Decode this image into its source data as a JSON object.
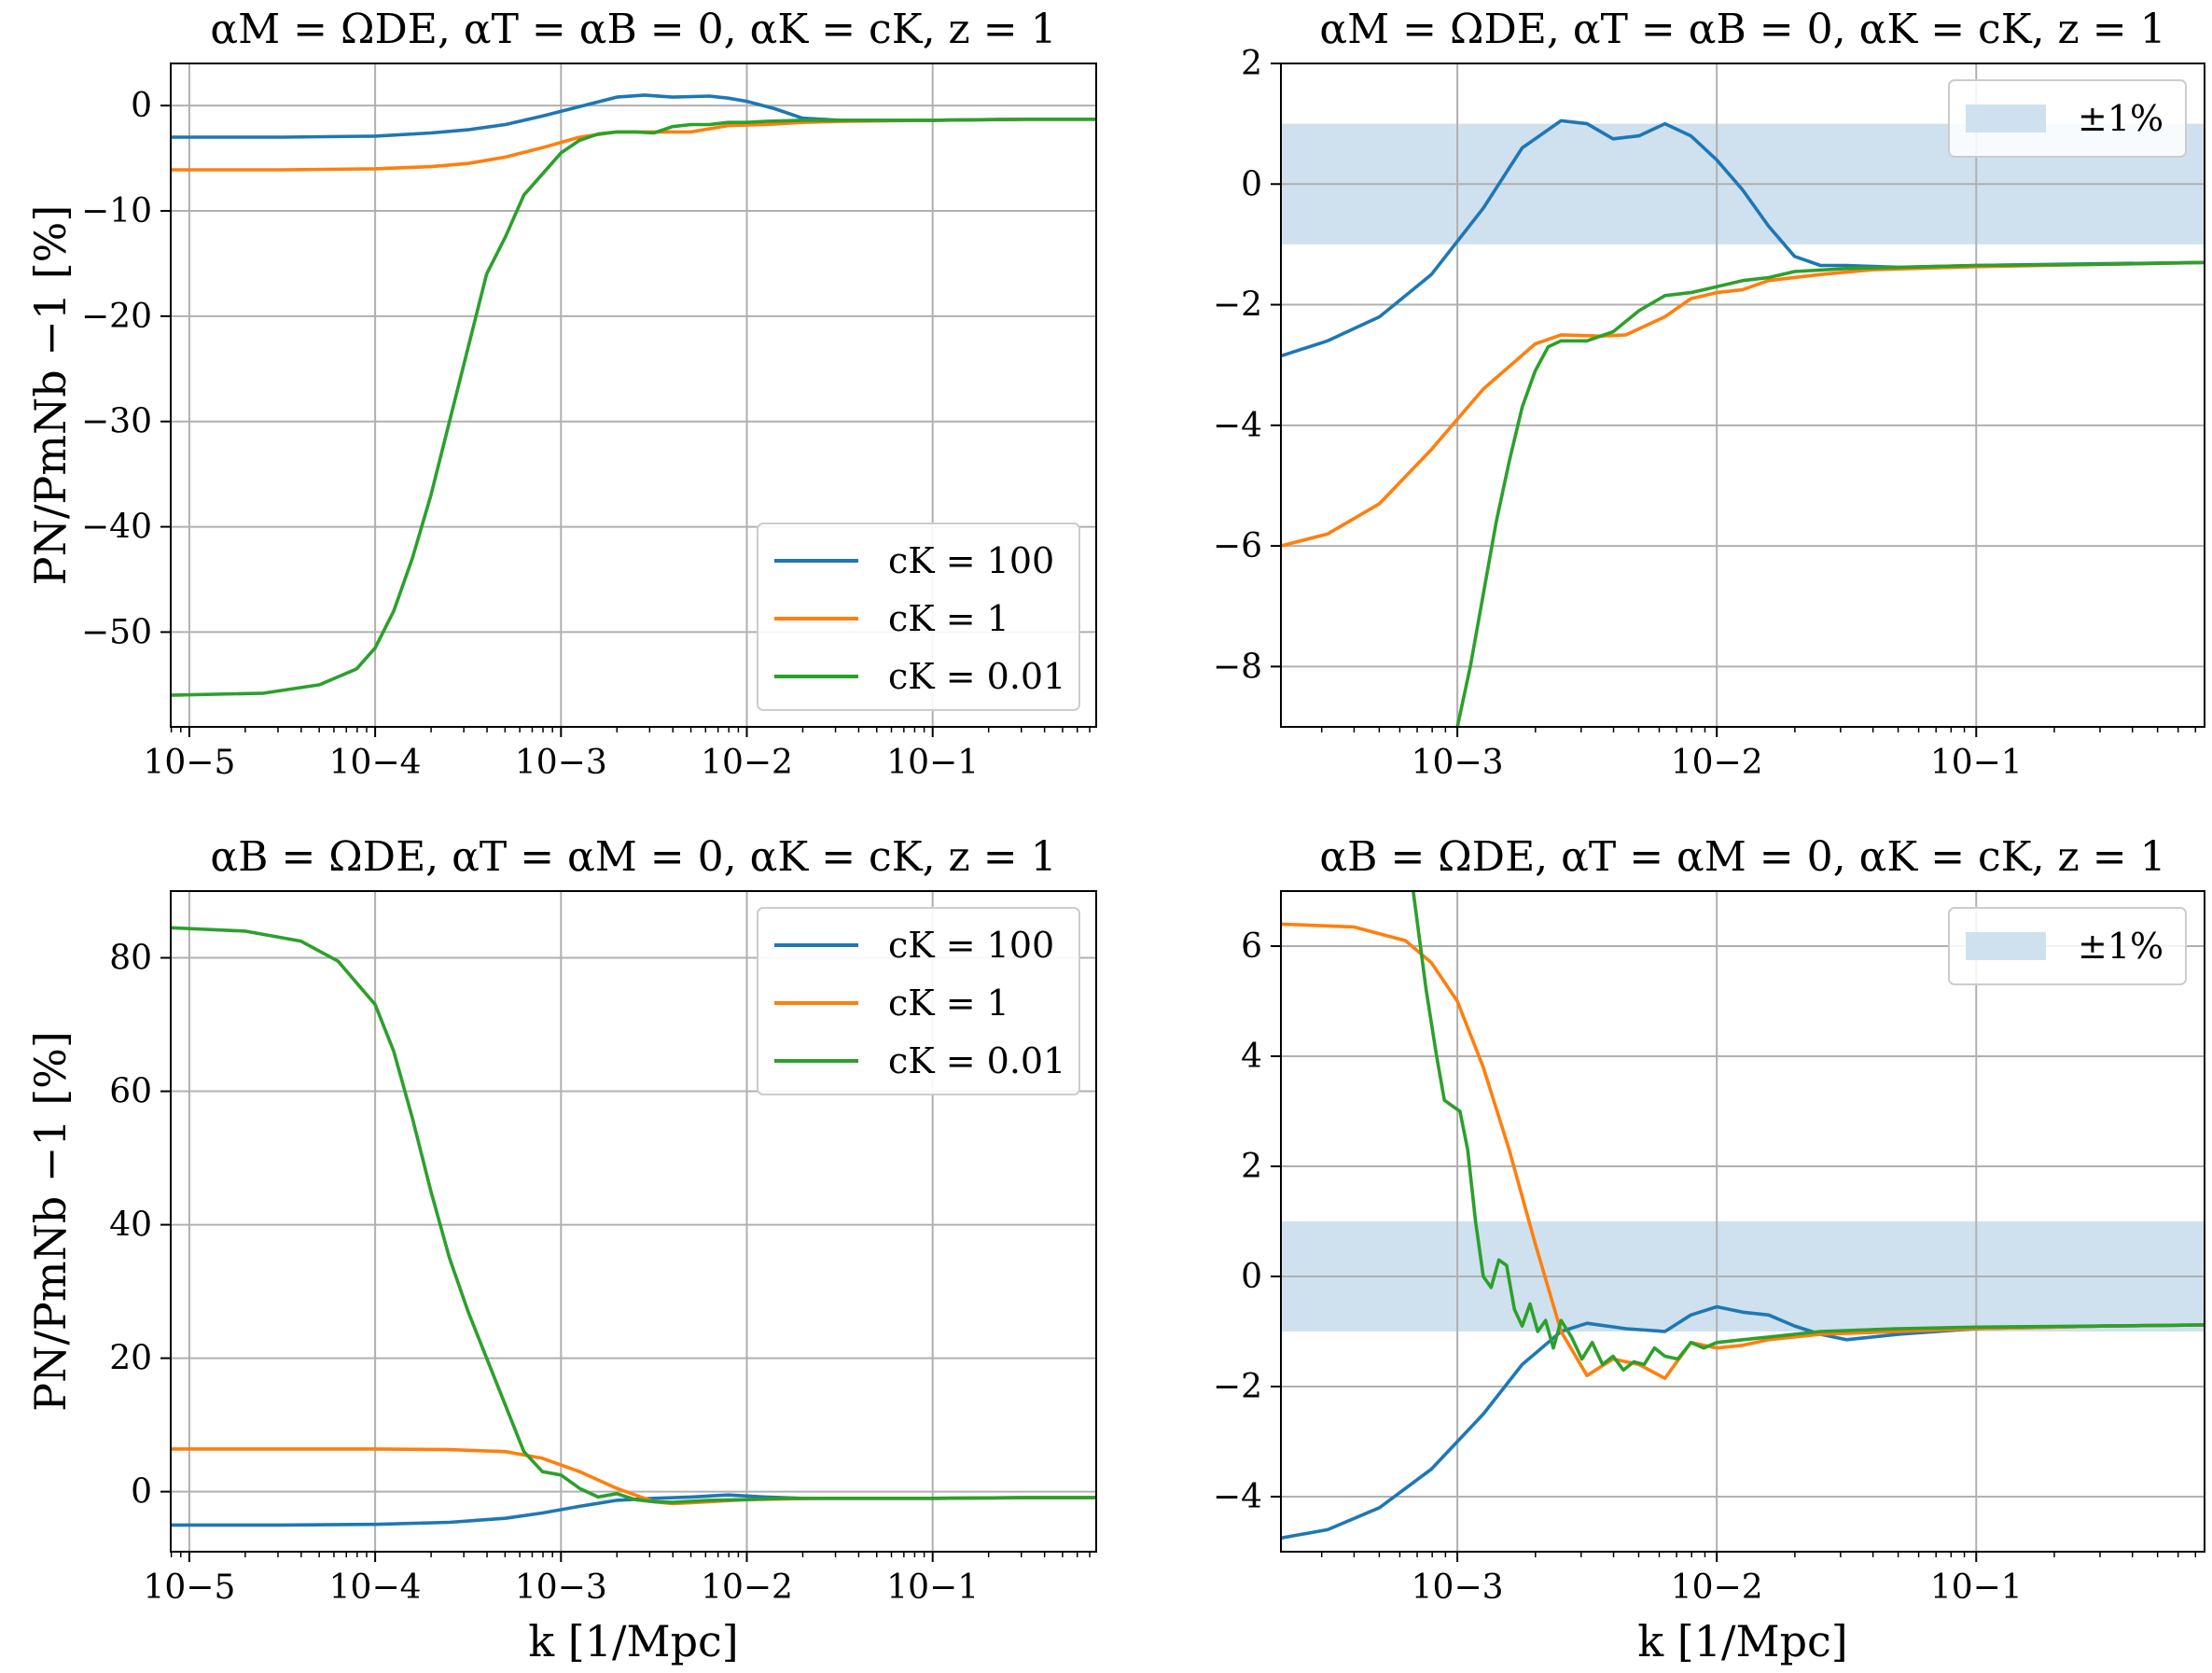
{
  "colors": {
    "ck_100": "#1f77b4",
    "ck_1": "#ff7f0e",
    "ck_0.01": "#2ca02c",
    "band": "#cfe1ee"
  },
  "chart_data": [
    {
      "id": "top-left",
      "type": "line",
      "title": "αM = ΩDE, αT = αB = 0, αK = cK, z = 1",
      "xlabel": "",
      "ylabel": "PN/PmNb −1 [%]",
      "xscale": "log",
      "xlim_log10": [
        -5.1,
        -0.12
      ],
      "ylim": [
        -59,
        4
      ],
      "xticks": [
        {
          "v": -5,
          "label": "10−5"
        },
        {
          "v": -4,
          "label": "10−4"
        },
        {
          "v": -3,
          "label": "10−3"
        },
        {
          "v": -2,
          "label": "10−2"
        },
        {
          "v": -1,
          "label": "10−1"
        }
      ],
      "yticks": [
        {
          "v": 0,
          "label": "0"
        },
        {
          "v": -10,
          "label": "−10"
        },
        {
          "v": -20,
          "label": "−20"
        },
        {
          "v": -30,
          "label": "−30"
        },
        {
          "v": -40,
          "label": "−40"
        },
        {
          "v": -50,
          "label": "−50"
        }
      ],
      "legend": {
        "position": "lower-right",
        "entries": [
          "cK = 100",
          "cK = 1",
          "cK = 0.01"
        ]
      },
      "series": [
        {
          "name": "cK = 100",
          "x_log10": [
            -5.1,
            -4.5,
            -4.0,
            -3.7,
            -3.5,
            -3.3,
            -3.1,
            -2.9,
            -2.7,
            -2.55,
            -2.4,
            -2.2,
            -2.1,
            -2.0,
            -1.85,
            -1.7,
            -1.5,
            -1.0,
            -0.5,
            -0.12
          ],
          "values": [
            -3.0,
            -3.0,
            -2.9,
            -2.6,
            -2.3,
            -1.8,
            -1.0,
            -0.1,
            0.8,
            1.0,
            0.8,
            0.9,
            0.7,
            0.4,
            -0.3,
            -1.2,
            -1.4,
            -1.4,
            -1.3,
            -1.3
          ]
        },
        {
          "name": "cK = 1",
          "x_log10": [
            -5.1,
            -4.5,
            -4.0,
            -3.7,
            -3.5,
            -3.3,
            -3.1,
            -2.9,
            -2.7,
            -2.5,
            -2.3,
            -2.1,
            -1.9,
            -1.7,
            -1.5,
            -1.0,
            -0.5,
            -0.12
          ],
          "values": [
            -6.1,
            -6.1,
            -6.0,
            -5.8,
            -5.5,
            -4.9,
            -4.0,
            -3.0,
            -2.5,
            -2.5,
            -2.5,
            -1.9,
            -1.8,
            -1.6,
            -1.5,
            -1.4,
            -1.3,
            -1.3
          ]
        },
        {
          "name": "cK = 0.01",
          "x_log10": [
            -5.1,
            -4.6,
            -4.3,
            -4.1,
            -4.0,
            -3.9,
            -3.8,
            -3.7,
            -3.6,
            -3.5,
            -3.4,
            -3.3,
            -3.2,
            -3.1,
            -3.0,
            -2.9,
            -2.8,
            -2.7,
            -2.6,
            -2.5,
            -2.4,
            -2.3,
            -2.2,
            -2.1,
            -2.0,
            -1.9,
            -1.7,
            -1.5,
            -1.0,
            -0.5,
            -0.12
          ],
          "values": [
            -56.0,
            -55.8,
            -55.0,
            -53.5,
            -51.5,
            -48.0,
            -43.0,
            -37.0,
            -30.0,
            -23.0,
            -16.0,
            -12.5,
            -8.5,
            -6.5,
            -4.5,
            -3.3,
            -2.7,
            -2.5,
            -2.5,
            -2.6,
            -2.0,
            -1.8,
            -1.8,
            -1.6,
            -1.6,
            -1.5,
            -1.4,
            -1.4,
            -1.4,
            -1.3,
            -1.3
          ]
        }
      ]
    },
    {
      "id": "top-right",
      "type": "line",
      "title": "αM = ΩDE, αT = αB = 0, αK = cK, z = 1",
      "xlabel": "",
      "ylabel": "",
      "xscale": "log",
      "xlim_log10": [
        -3.68,
        -0.12
      ],
      "ylim": [
        -9,
        2
      ],
      "band": [
        -1,
        1
      ],
      "xticks": [
        {
          "v": -3,
          "label": "10−3"
        },
        {
          "v": -2,
          "label": "10−2"
        },
        {
          "v": -1,
          "label": "10−1"
        }
      ],
      "yticks": [
        {
          "v": 2,
          "label": "2"
        },
        {
          "v": 0,
          "label": "0"
        },
        {
          "v": -2,
          "label": "−2"
        },
        {
          "v": -4,
          "label": "−4"
        },
        {
          "v": -6,
          "label": "−6"
        },
        {
          "v": -8,
          "label": "−8"
        }
      ],
      "legend": {
        "position": "upper-right",
        "entries": [
          "±1%"
        ]
      },
      "series": [
        {
          "name": "cK = 100",
          "x_log10": [
            -3.68,
            -3.5,
            -3.3,
            -3.1,
            -2.9,
            -2.75,
            -2.6,
            -2.5,
            -2.4,
            -2.3,
            -2.2,
            -2.1,
            -2.0,
            -1.9,
            -1.8,
            -1.7,
            -1.6,
            -1.5,
            -1.3,
            -1.0,
            -0.5,
            -0.12
          ],
          "values": [
            -2.85,
            -2.6,
            -2.2,
            -1.5,
            -0.4,
            0.6,
            1.05,
            1.0,
            0.75,
            0.8,
            1.0,
            0.8,
            0.4,
            -0.1,
            -0.7,
            -1.2,
            -1.35,
            -1.35,
            -1.38,
            -1.35,
            -1.32,
            -1.3
          ]
        },
        {
          "name": "cK = 1",
          "x_log10": [
            -3.68,
            -3.5,
            -3.3,
            -3.1,
            -2.9,
            -2.7,
            -2.6,
            -2.45,
            -2.35,
            -2.2,
            -2.1,
            -2.0,
            -1.9,
            -1.8,
            -1.6,
            -1.4,
            -1.0,
            -0.5,
            -0.12
          ],
          "values": [
            -6.0,
            -5.8,
            -5.3,
            -4.4,
            -3.4,
            -2.65,
            -2.5,
            -2.52,
            -2.5,
            -2.2,
            -1.9,
            -1.8,
            -1.75,
            -1.6,
            -1.5,
            -1.42,
            -1.37,
            -1.33,
            -1.3
          ]
        },
        {
          "name": "cK = 0.01",
          "x_log10": [
            -3.0,
            -2.95,
            -2.9,
            -2.85,
            -2.8,
            -2.75,
            -2.7,
            -2.65,
            -2.6,
            -2.5,
            -2.4,
            -2.3,
            -2.2,
            -2.1,
            -2.0,
            -1.9,
            -1.8,
            -1.7,
            -1.5,
            -1.0,
            -0.5,
            -0.12
          ],
          "values": [
            -9.0,
            -8.0,
            -6.8,
            -5.6,
            -4.6,
            -3.7,
            -3.1,
            -2.7,
            -2.6,
            -2.6,
            -2.45,
            -2.1,
            -1.85,
            -1.8,
            -1.7,
            -1.6,
            -1.55,
            -1.45,
            -1.4,
            -1.35,
            -1.33,
            -1.3
          ]
        }
      ]
    },
    {
      "id": "bottom-left",
      "type": "line",
      "title": "αB = ΩDE, αT = αM = 0, αK = cK, z = 1",
      "xlabel": "k [1/Mpc]",
      "ylabel": "PN/PmNb −1 [%]",
      "xscale": "log",
      "xlim_log10": [
        -5.1,
        -0.12
      ],
      "ylim": [
        -9,
        90
      ],
      "xticks": [
        {
          "v": -5,
          "label": "10−5"
        },
        {
          "v": -4,
          "label": "10−4"
        },
        {
          "v": -3,
          "label": "10−3"
        },
        {
          "v": -2,
          "label": "10−2"
        },
        {
          "v": -1,
          "label": "10−1"
        }
      ],
      "yticks": [
        {
          "v": 80,
          "label": "80"
        },
        {
          "v": 60,
          "label": "60"
        },
        {
          "v": 40,
          "label": "40"
        },
        {
          "v": 20,
          "label": "20"
        },
        {
          "v": 0,
          "label": "0"
        }
      ],
      "legend": {
        "position": "upper-right",
        "entries": [
          "cK = 100",
          "cK = 1",
          "cK = 0.01"
        ]
      },
      "series": [
        {
          "name": "cK = 100",
          "x_log10": [
            -5.1,
            -4.5,
            -4.0,
            -3.6,
            -3.3,
            -3.1,
            -2.9,
            -2.7,
            -2.5,
            -2.3,
            -2.1,
            -1.9,
            -1.7,
            -1.5,
            -1.0,
            -0.5,
            -0.12
          ],
          "values": [
            -5.0,
            -5.0,
            -4.9,
            -4.6,
            -4.0,
            -3.2,
            -2.2,
            -1.3,
            -1.0,
            -0.8,
            -0.5,
            -0.8,
            -1.0,
            -1.0,
            -1.0,
            -0.9,
            -0.9
          ]
        },
        {
          "name": "cK = 1",
          "x_log10": [
            -5.1,
            -4.5,
            -4.0,
            -3.6,
            -3.3,
            -3.1,
            -2.9,
            -2.7,
            -2.5,
            -2.4,
            -2.2,
            -2.0,
            -1.8,
            -1.6,
            -1.0,
            -0.5,
            -0.12
          ],
          "values": [
            6.4,
            6.4,
            6.4,
            6.3,
            6.0,
            5.0,
            3.0,
            0.5,
            -1.5,
            -1.8,
            -1.5,
            -1.2,
            -1.1,
            -1.0,
            -1.0,
            -0.9,
            -0.9
          ]
        },
        {
          "name": "cK = 0.01",
          "x_log10": [
            -5.1,
            -4.7,
            -4.4,
            -4.2,
            -4.0,
            -3.9,
            -3.8,
            -3.7,
            -3.6,
            -3.5,
            -3.4,
            -3.3,
            -3.2,
            -3.1,
            -3.0,
            -2.9,
            -2.8,
            -2.7,
            -2.6,
            -2.5,
            -2.4,
            -2.2,
            -2.0,
            -1.8,
            -1.5,
            -1.0,
            -0.5,
            -0.12
          ],
          "values": [
            84.5,
            84.0,
            82.5,
            79.5,
            73.0,
            66.0,
            56.0,
            45.0,
            35.0,
            27.0,
            20.0,
            13.0,
            6.0,
            3.0,
            2.5,
            0.5,
            -0.8,
            -0.3,
            -1.2,
            -1.5,
            -1.6,
            -1.3,
            -1.2,
            -1.0,
            -1.0,
            -1.0,
            -0.9,
            -0.9
          ]
        }
      ]
    },
    {
      "id": "bottom-right",
      "type": "line",
      "title": "αB = ΩDE, αT = αM = 0, αK = cK, z = 1",
      "xlabel": "k [1/Mpc]",
      "ylabel": "",
      "xscale": "log",
      "xlim_log10": [
        -3.68,
        -0.12
      ],
      "ylim": [
        -5,
        7
      ],
      "band": [
        -1,
        1
      ],
      "xticks": [
        {
          "v": -3,
          "label": "10−3"
        },
        {
          "v": -2,
          "label": "10−2"
        },
        {
          "v": -1,
          "label": "10−1"
        }
      ],
      "yticks": [
        {
          "v": 6,
          "label": "6"
        },
        {
          "v": 4,
          "label": "4"
        },
        {
          "v": 2,
          "label": "2"
        },
        {
          "v": 0,
          "label": "0"
        },
        {
          "v": -2,
          "label": "−2"
        },
        {
          "v": -4,
          "label": "−4"
        }
      ],
      "legend": {
        "position": "upper-right",
        "entries": [
          "±1%"
        ]
      },
      "series": [
        {
          "name": "cK = 100",
          "x_log10": [
            -3.68,
            -3.5,
            -3.3,
            -3.1,
            -2.9,
            -2.75,
            -2.6,
            -2.5,
            -2.35,
            -2.2,
            -2.1,
            -2.0,
            -1.9,
            -1.8,
            -1.7,
            -1.6,
            -1.5,
            -1.3,
            -1.0,
            -0.5,
            -0.12
          ],
          "values": [
            -4.75,
            -4.6,
            -4.2,
            -3.5,
            -2.5,
            -1.6,
            -1.0,
            -0.85,
            -0.95,
            -1.0,
            -0.7,
            -0.55,
            -0.65,
            -0.7,
            -0.9,
            -1.05,
            -1.15,
            -1.05,
            -0.95,
            -0.9,
            -0.88
          ]
        },
        {
          "name": "cK = 1",
          "x_log10": [
            -3.68,
            -3.4,
            -3.2,
            -3.1,
            -3.0,
            -2.9,
            -2.8,
            -2.7,
            -2.6,
            -2.5,
            -2.4,
            -2.3,
            -2.2,
            -2.1,
            -2.0,
            -1.9,
            -1.8,
            -1.6,
            -1.3,
            -1.0,
            -0.5,
            -0.12
          ],
          "values": [
            6.4,
            6.35,
            6.1,
            5.7,
            5.0,
            3.8,
            2.3,
            0.6,
            -1.0,
            -1.8,
            -1.5,
            -1.6,
            -1.85,
            -1.2,
            -1.3,
            -1.25,
            -1.15,
            -1.05,
            -1.0,
            -0.95,
            -0.9,
            -0.88
          ]
        },
        {
          "name": "cK = 0.01",
          "x_log10": [
            -3.17,
            -3.12,
            -3.08,
            -3.05,
            -3.02,
            -2.99,
            -2.96,
            -2.93,
            -2.9,
            -2.87,
            -2.84,
            -2.81,
            -2.78,
            -2.75,
            -2.72,
            -2.69,
            -2.66,
            -2.63,
            -2.6,
            -2.56,
            -2.52,
            -2.48,
            -2.44,
            -2.4,
            -2.36,
            -2.32,
            -2.28,
            -2.24,
            -2.2,
            -2.15,
            -2.1,
            -2.05,
            -2.0,
            -1.9,
            -1.8,
            -1.6,
            -1.3,
            -1.0,
            -0.5,
            -0.12
          ],
          "values": [
            7.0,
            5.2,
            4.0,
            3.2,
            3.1,
            3.0,
            2.3,
            1.0,
            0.0,
            -0.2,
            0.3,
            0.2,
            -0.6,
            -0.9,
            -0.5,
            -1.0,
            -0.8,
            -1.3,
            -0.8,
            -1.1,
            -1.5,
            -1.2,
            -1.6,
            -1.45,
            -1.7,
            -1.55,
            -1.6,
            -1.3,
            -1.45,
            -1.5,
            -1.2,
            -1.3,
            -1.2,
            -1.15,
            -1.1,
            -1.0,
            -0.95,
            -0.92,
            -0.9,
            -0.88
          ]
        }
      ]
    }
  ]
}
